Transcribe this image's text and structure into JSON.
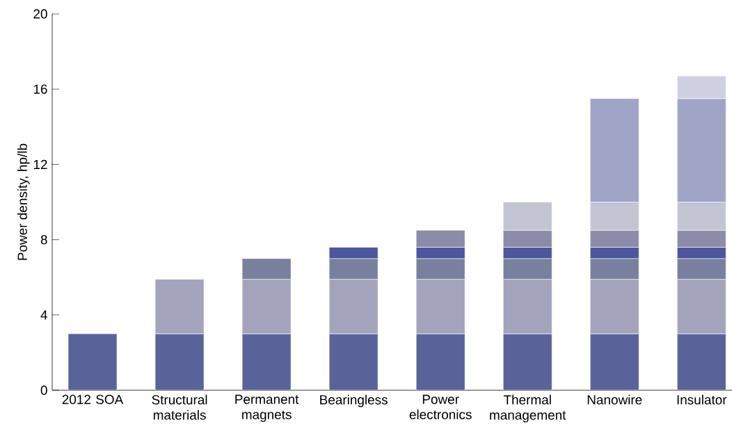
{
  "chart_data": {
    "type": "bar",
    "stacked": true,
    "ylabel": "Power density, hp/lb",
    "categories": [
      "2012 SOA",
      "Structural materials",
      "Permanent magnets",
      "Bearingless",
      "Power electronics",
      "Thermal management",
      "Nanowire",
      "Insulator"
    ],
    "series": [
      {
        "color": "#5a6399",
        "values": [
          3,
          3,
          3,
          3,
          3,
          3,
          3,
          3
        ]
      },
      {
        "color": "#a3a3bb",
        "values": [
          null,
          2.9,
          2.9,
          2.9,
          2.9,
          2.9,
          2.9,
          2.9
        ]
      },
      {
        "color": "#79809e",
        "values": [
          null,
          null,
          1.1,
          1.1,
          1.1,
          1.1,
          1.1,
          1.1
        ]
      },
      {
        "color": "#4b569c",
        "values": [
          null,
          null,
          null,
          0.6,
          0.6,
          0.6,
          0.6,
          0.6
        ]
      },
      {
        "color": "#8c8ca8",
        "values": [
          null,
          null,
          null,
          null,
          0.9,
          0.9,
          0.9,
          0.9
        ]
      },
      {
        "color": "#c3c6d2",
        "values": [
          null,
          null,
          null,
          null,
          null,
          1.5,
          1.5,
          1.5
        ]
      },
      {
        "color": "#a0a4c6",
        "values": [
          null,
          null,
          null,
          null,
          null,
          null,
          5.5,
          5.5
        ]
      },
      {
        "color": "#cfcfe2",
        "values": [
          null,
          null,
          null,
          null,
          null,
          null,
          null,
          1.2
        ]
      }
    ],
    "ylim": [
      0,
      20
    ],
    "yticks": [
      0,
      4,
      8,
      12,
      16,
      20
    ],
    "grid": false
  }
}
